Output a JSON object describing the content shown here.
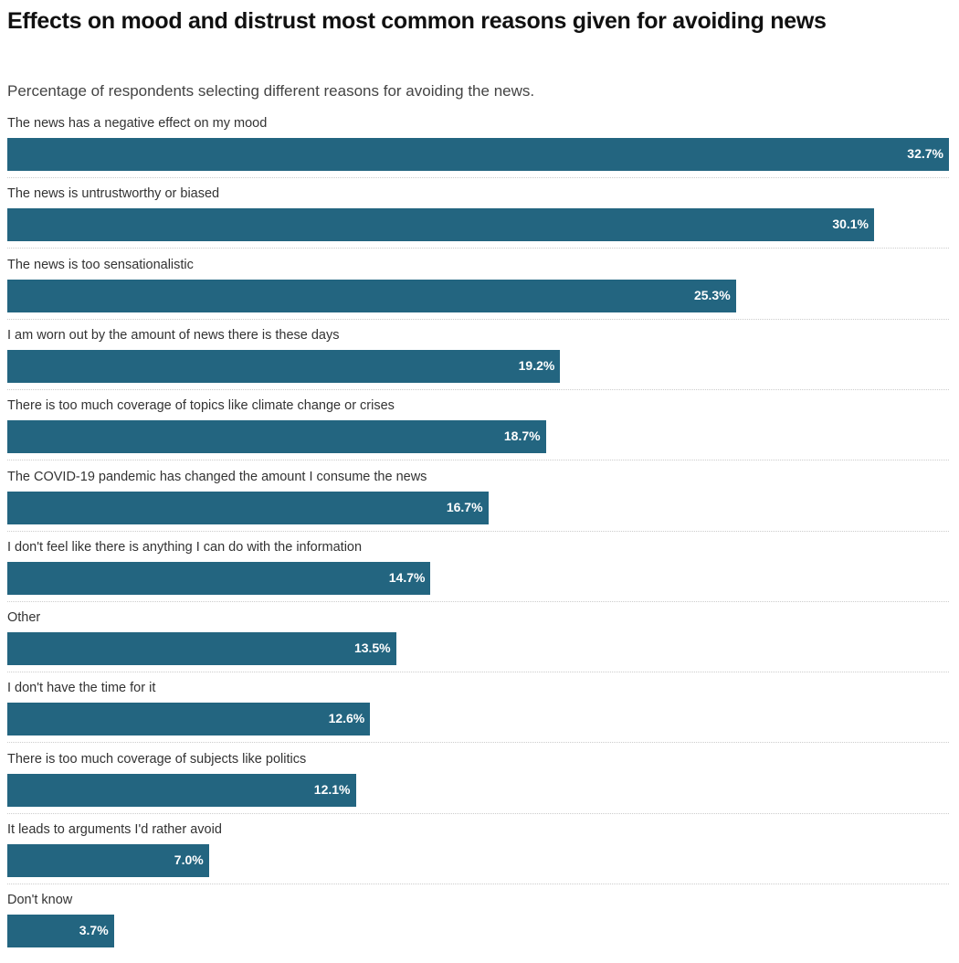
{
  "chart_data": {
    "type": "bar",
    "orientation": "horizontal",
    "title": "Effects on mood and distrust most common reasons given for avoiding news",
    "subtitle": "Percentage of respondents selecting different reasons for avoiding the news.",
    "categories": [
      "The news has a negative effect on my mood",
      "The news is untrustworthy or biased",
      "The news is too sensationalistic",
      "I am worn out by the amount of news there is these days",
      "There is too much coverage of topics like climate change or crises",
      "The COVID-19 pandemic has changed the amount I consume the news",
      "I don't feel like there is anything I can do with the information",
      "Other",
      "I don't have the time for it",
      "There is too much coverage of subjects like politics",
      "It leads to arguments I'd rather avoid",
      "Don't know"
    ],
    "values": [
      32.7,
      30.1,
      25.3,
      19.2,
      18.7,
      16.7,
      14.7,
      13.5,
      12.6,
      12.1,
      7.0,
      3.7
    ],
    "value_labels": [
      "32.7%",
      "30.1%",
      "25.3%",
      "19.2%",
      "18.7%",
      "16.7%",
      "14.7%",
      "13.5%",
      "12.6%",
      "12.1%",
      "7.0%",
      "3.7%"
    ],
    "xlim": [
      0,
      32.7
    ],
    "bar_color": "#236580",
    "grid": false,
    "legend": "none"
  }
}
